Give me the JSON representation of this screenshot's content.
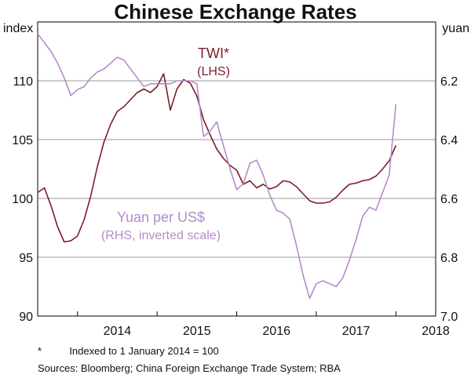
{
  "chart_data": {
    "type": "line",
    "title": "Chinese Exchange Rates",
    "footnote_marker": "*",
    "footnote": "Indexed to 1 January 2014 = 100",
    "sources": "Sources: Bloomberg; China Foreign Exchange Trade System; RBA",
    "x_axis": {
      "ticks": [
        "2014",
        "2015",
        "2016",
        "2017",
        "2018"
      ],
      "range": [
        "2013-07",
        "2018-07"
      ]
    },
    "left_axis": {
      "unit": "index",
      "range": [
        90,
        115
      ],
      "ticks": [
        90,
        95,
        100,
        105,
        110
      ]
    },
    "right_axis": {
      "unit": "yuan",
      "range": [
        7.0,
        6.0
      ],
      "inverted": true,
      "ticks": [
        "7.0",
        "6.8",
        "6.6",
        "6.4",
        "6.2"
      ]
    },
    "grid": "horizontal",
    "colors": {
      "twi": "#7a1e2a",
      "yuan": "#b48cc8",
      "axis": "#000000",
      "grid": "#9a9a9a"
    },
    "series": [
      {
        "name": "TWI*",
        "label": "TWI*",
        "sublabel": "(LHS)",
        "axis": "left",
        "x": [
          "2013-07",
          "2013-08",
          "2013-09",
          "2013-10",
          "2013-11",
          "2013-12",
          "2014-01",
          "2014-02",
          "2014-03",
          "2014-04",
          "2014-05",
          "2014-06",
          "2014-07",
          "2014-08",
          "2014-09",
          "2014-10",
          "2014-11",
          "2014-12",
          "2015-01",
          "2015-02",
          "2015-03",
          "2015-04",
          "2015-05",
          "2015-06",
          "2015-07",
          "2015-08",
          "2015-09",
          "2015-10",
          "2015-11",
          "2015-12",
          "2016-01",
          "2016-02",
          "2016-03",
          "2016-04",
          "2016-05",
          "2016-06",
          "2016-07",
          "2016-08",
          "2016-09",
          "2016-10",
          "2016-11",
          "2016-12",
          "2017-01",
          "2017-02",
          "2017-03",
          "2017-04",
          "2017-05",
          "2017-06",
          "2017-07",
          "2017-08",
          "2017-09",
          "2017-10",
          "2017-11",
          "2017-12",
          "2018-01"
        ],
        "values": [
          100.5,
          100.9,
          99.4,
          97.6,
          96.3,
          96.4,
          96.8,
          98.2,
          100.2,
          102.7,
          104.8,
          106.3,
          107.4,
          107.8,
          108.4,
          109.0,
          109.3,
          109.0,
          109.5,
          110.6,
          107.5,
          109.3,
          110.1,
          109.8,
          108.7,
          106.7,
          105.4,
          104.2,
          103.4,
          102.8,
          102.4,
          101.2,
          101.5,
          100.9,
          101.2,
          100.8,
          101.0,
          101.5,
          101.4,
          101.0,
          100.4,
          99.8,
          99.6,
          99.6,
          99.7,
          100.1,
          100.7,
          101.2,
          101.3,
          101.5,
          101.6,
          101.9,
          102.5,
          103.2,
          104.5
        ]
      },
      {
        "name": "Yuan per US$",
        "label": "Yuan per US$",
        "sublabel": "(RHS, inverted scale)",
        "axis": "right",
        "x": [
          "2013-07",
          "2013-08",
          "2013-09",
          "2013-10",
          "2013-11",
          "2013-12",
          "2014-01",
          "2014-02",
          "2014-03",
          "2014-04",
          "2014-05",
          "2014-06",
          "2014-07",
          "2014-08",
          "2014-09",
          "2014-10",
          "2014-11",
          "2014-12",
          "2015-01",
          "2015-02",
          "2015-03",
          "2015-04",
          "2015-05",
          "2015-06",
          "2015-07",
          "2015-08",
          "2015-09",
          "2015-10",
          "2015-11",
          "2015-12",
          "2016-01",
          "2016-02",
          "2016-03",
          "2016-04",
          "2016-05",
          "2016-06",
          "2016-07",
          "2016-08",
          "2016-09",
          "2016-10",
          "2016-11",
          "2016-12",
          "2017-01",
          "2017-02",
          "2017-03",
          "2017-04",
          "2017-05",
          "2017-06",
          "2017-07",
          "2017-08",
          "2017-09",
          "2017-10",
          "2017-11",
          "2017-12",
          "2018-01"
        ],
        "values": [
          6.04,
          6.07,
          6.1,
          6.14,
          6.19,
          6.25,
          6.23,
          6.22,
          6.19,
          6.17,
          6.16,
          6.14,
          6.12,
          6.13,
          6.16,
          6.19,
          6.22,
          6.21,
          6.21,
          6.21,
          6.21,
          6.2,
          6.2,
          6.2,
          6.21,
          6.39,
          6.37,
          6.34,
          6.42,
          6.5,
          6.57,
          6.55,
          6.48,
          6.47,
          6.52,
          6.59,
          6.64,
          6.65,
          6.67,
          6.76,
          6.86,
          6.94,
          6.89,
          6.88,
          6.89,
          6.9,
          6.87,
          6.81,
          6.74,
          6.66,
          6.63,
          6.64,
          6.58,
          6.52,
          6.28
        ]
      }
    ]
  }
}
